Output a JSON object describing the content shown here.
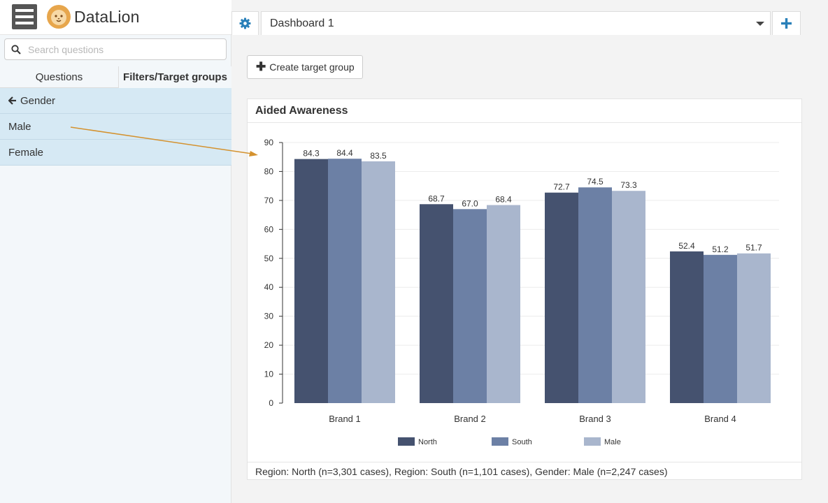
{
  "app": {
    "brand": "DataLion"
  },
  "search": {
    "placeholder": "Search questions",
    "value": ""
  },
  "tabs": [
    {
      "label": "Questions"
    },
    {
      "label": "Filters/Target groups"
    }
  ],
  "list": {
    "back_label": "Gender",
    "items": [
      {
        "label": "Male"
      },
      {
        "label": "Female"
      }
    ]
  },
  "dashboard": {
    "selected": "Dashboard 1"
  },
  "create_button": {
    "label": "Create target group"
  },
  "panel": {
    "title": "Aided Awareness",
    "footer": "Region: North (n=3,301 cases), Region: South (n=1,101 cases), Gender: Male (n=2,247 cases)"
  },
  "colors": {
    "north": "#45526f",
    "south": "#6c80a5",
    "male": "#a9b6cd",
    "accent": "#2980b9",
    "arrow": "#d4922f"
  },
  "chart_data": {
    "type": "bar",
    "title": "Aided Awareness",
    "categories": [
      "Brand 1",
      "Brand 2",
      "Brand 3",
      "Brand 4"
    ],
    "series": [
      {
        "name": "North",
        "values": [
          84.3,
          68.7,
          72.7,
          52.4
        ]
      },
      {
        "name": "South",
        "values": [
          84.4,
          67.0,
          74.5,
          51.2
        ]
      },
      {
        "name": "Male",
        "values": [
          83.5,
          68.4,
          73.3,
          51.7
        ]
      }
    ],
    "ylim": [
      0,
      90
    ],
    "yticks": [
      0,
      10,
      20,
      30,
      40,
      50,
      60,
      70,
      80,
      90
    ],
    "grid": true,
    "legend": "bottom",
    "xlabel": "",
    "ylabel": ""
  }
}
